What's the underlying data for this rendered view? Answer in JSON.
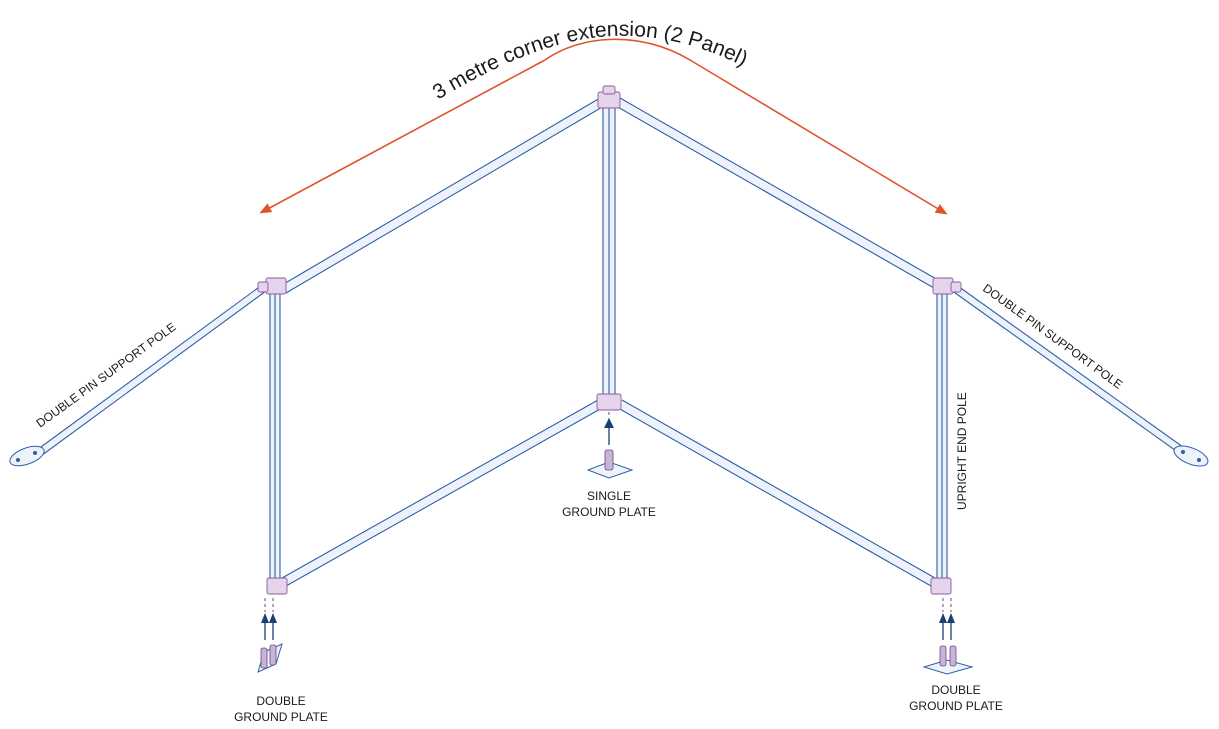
{
  "title": "3 metre corner extension (2 Panel)",
  "labels": {
    "left_support": "DOUBLE PIN SUPPORT POLE",
    "right_support": "DOUBLE PIN SUPPORT POLE",
    "upright": "UPRIGHT END POLE",
    "single_plate_l1": "SINGLE",
    "single_plate_l2": "GROUND PLATE",
    "left_double_l1": "DOUBLE",
    "left_double_l2": "GROUND PLATE",
    "right_double_l1": "DOUBLE",
    "right_double_l2": "GROUND PLATE"
  },
  "colors": {
    "extension_arrow": "#e0552a",
    "frame": "#2f5fa8",
    "connector": "#8a5a9e",
    "ground_arrow": "#1b3f75"
  }
}
